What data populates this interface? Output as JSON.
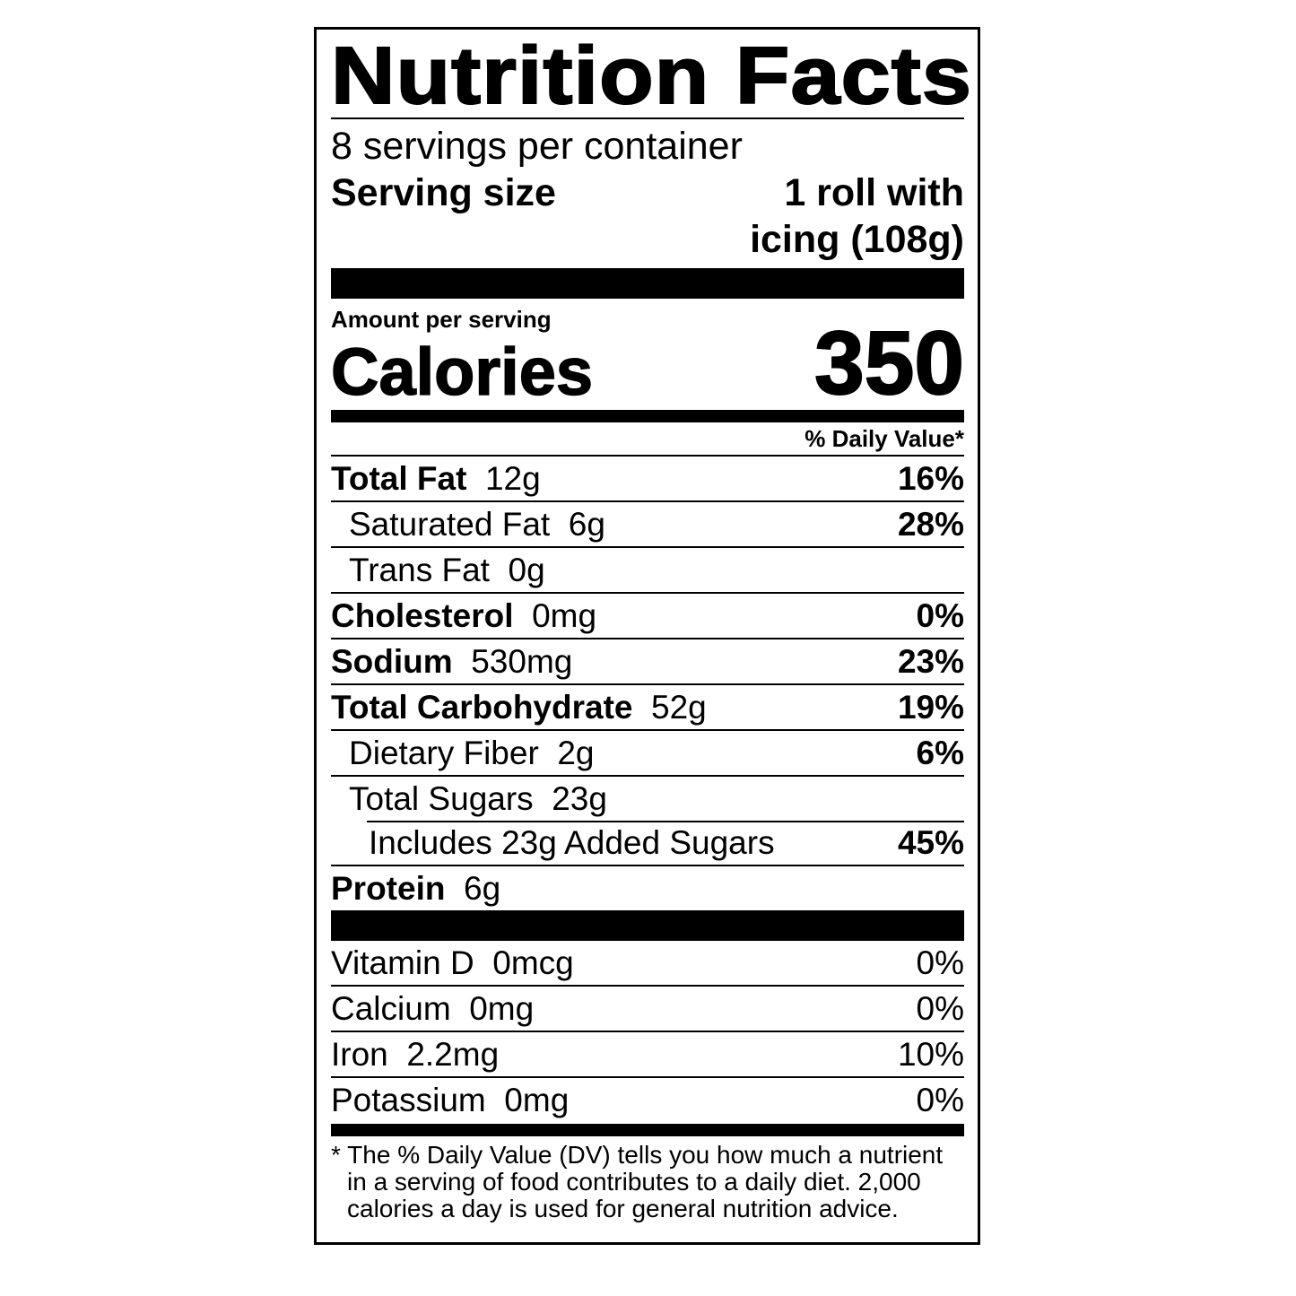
{
  "title": "Nutrition Facts",
  "servings_per_container": "8 servings per container",
  "serving_size_label": "Serving size",
  "serving_size_line1": "1 roll with",
  "serving_size_line2": "icing (108g)",
  "amount_per_serving": "Amount per serving",
  "calories_label": "Calories",
  "calories_value": "350",
  "daily_value_header": "% Daily Value*",
  "nutrients": [
    {
      "name": "Total Fat",
      "amount": "12g",
      "dv": "16%"
    },
    {
      "name": "Saturated Fat",
      "amount": "6g",
      "dv": "28%"
    },
    {
      "name": "Trans Fat",
      "amount": "0g",
      "dv": ""
    },
    {
      "name": "Cholesterol",
      "amount": "0mg",
      "dv": "0%"
    },
    {
      "name": "Sodium",
      "amount": "530mg",
      "dv": "23%"
    },
    {
      "name": "Total Carbohydrate",
      "amount": "52g",
      "dv": "19%"
    },
    {
      "name": "Dietary Fiber",
      "amount": "2g",
      "dv": "6%"
    },
    {
      "name": "Total Sugars",
      "amount": "23g",
      "dv": ""
    },
    {
      "name": "Includes 23g Added Sugars",
      "amount": "",
      "dv": "45%"
    },
    {
      "name": "Protein",
      "amount": "6g",
      "dv": ""
    }
  ],
  "vitamins": [
    {
      "name": "Vitamin D",
      "amount": "0mcg",
      "dv": "0%"
    },
    {
      "name": "Calcium",
      "amount": "0mg",
      "dv": "0%"
    },
    {
      "name": "Iron",
      "amount": "2.2mg",
      "dv": "10%"
    },
    {
      "name": "Potassium",
      "amount": "0mg",
      "dv": "0%"
    }
  ],
  "footnote": "* The % Daily Value (DV) tells you how much a nutrient in a serving of food contributes to a daily diet. 2,000 calories a day is used for general nutrition advice."
}
